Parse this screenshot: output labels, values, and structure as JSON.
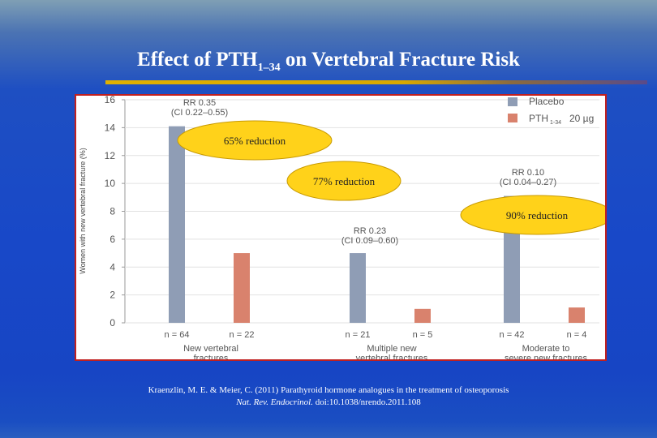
{
  "slide": {
    "title_main": "Effect of PTH",
    "title_sub": "1–34",
    "title_rest": " on Vertebral Fracture Risk"
  },
  "citation": {
    "line1": "Kraenzlin, M. E. & Meier, C. (2011) Parathyroid hormone analogues in the treatment of osteoporosis",
    "journal": "Nat. Rev. Endocrinol.",
    "doi": " doi:10.1038/nrendo.2011.108"
  },
  "chart_data": {
    "type": "bar",
    "ylabel": "Women with new vertebral fracture (%)",
    "ylim": [
      0,
      16
    ],
    "yticks": [
      0,
      2,
      4,
      6,
      8,
      10,
      12,
      14,
      16
    ],
    "categories": [
      [
        "New vertebral",
        "fractures"
      ],
      [
        "Multiple new",
        "vertebral fractures"
      ],
      [
        "Moderate to",
        "severe new fractures"
      ]
    ],
    "series": [
      {
        "name": "Placebo",
        "values": [
          14.1,
          5.0,
          9.1
        ],
        "n": [
          "n = 64",
          "n = 21",
          "n = 42"
        ],
        "color": "#8f9db5"
      },
      {
        "name": "PTH1-34 20 µg",
        "values": [
          5.0,
          1.0,
          1.1
        ],
        "n": [
          "n = 22",
          "n = 5",
          "n = 4"
        ],
        "color": "#d9826d"
      }
    ],
    "legend": {
      "placement": "top-right",
      "placebo_label": "Placebo",
      "pth_label_main": "PTH",
      "pth_label_sub": "1-34",
      "pth_label_dose": "20 µg"
    },
    "annotations": [
      {
        "rr": "RR 0.35",
        "ci": "(CI 0.22–0.55)"
      },
      {
        "rr": "RR 0.23",
        "ci": "(CI 0.09–0.60)"
      },
      {
        "rr": "RR 0.10",
        "ci": "(CI 0.04–0.27)"
      }
    ],
    "callouts": [
      "65% reduction",
      "77% reduction",
      "90% reduction"
    ],
    "colors": {
      "callout_fill": "#ffd21a",
      "callout_border": "#c89a00"
    }
  }
}
